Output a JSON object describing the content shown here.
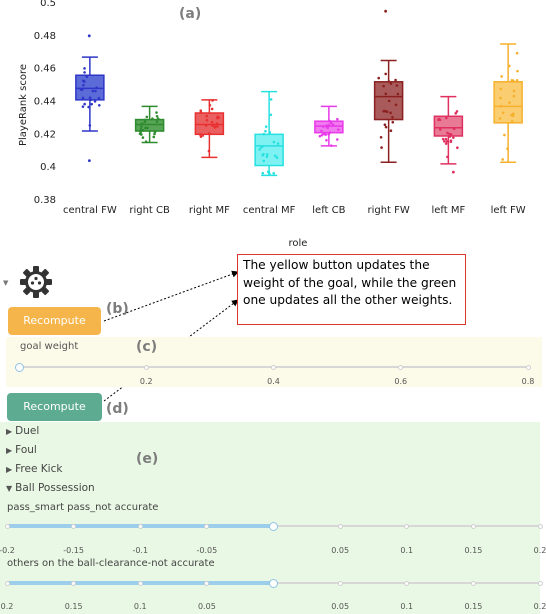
{
  "panels": {
    "a": "(a)",
    "b": "(b)",
    "c": "(c)",
    "d": "(d)",
    "e": "(e)"
  },
  "chart_data": {
    "type": "box",
    "title": "",
    "xlabel": "role",
    "ylabel": "PlayeRank score",
    "ylim": [
      0.38,
      0.5
    ],
    "yticks": [
      "0.38",
      "0.4",
      "0.42",
      "0.44",
      "0.46",
      "0.48",
      "0.5"
    ],
    "categories": [
      "central FW",
      "right CB",
      "right MF",
      "central MF",
      "left CB",
      "right FW",
      "left MF",
      "left FW"
    ],
    "colors": [
      "#2f36c8",
      "#2e8b2e",
      "#e83030",
      "#27e0e0",
      "#e83ae8",
      "#8b2020",
      "#e03060",
      "#f7b02c"
    ],
    "fills": [
      "#5b6bd8",
      "#58a558",
      "#ea6060",
      "#7ef2f2",
      "#f07af0",
      "#a95a5a",
      "#e87a95",
      "#f9cd70"
    ],
    "boxes": [
      {
        "min": 0.422,
        "q1": 0.441,
        "median": 0.448,
        "q3": 0.456,
        "max": 0.467,
        "outliers": [
          0.404,
          0.48
        ]
      },
      {
        "min": 0.415,
        "q1": 0.422,
        "median": 0.426,
        "q3": 0.429,
        "max": 0.437,
        "outliers": []
      },
      {
        "min": 0.406,
        "q1": 0.42,
        "median": 0.426,
        "q3": 0.433,
        "max": 0.441,
        "outliers": []
      },
      {
        "min": 0.395,
        "q1": 0.401,
        "median": 0.413,
        "q3": 0.42,
        "max": 0.446,
        "outliers": []
      },
      {
        "min": 0.413,
        "q1": 0.421,
        "median": 0.425,
        "q3": 0.428,
        "max": 0.437,
        "outliers": []
      },
      {
        "min": 0.403,
        "q1": 0.429,
        "median": 0.443,
        "q3": 0.452,
        "max": 0.465,
        "outliers": [
          0.495
        ]
      },
      {
        "min": 0.402,
        "q1": 0.419,
        "median": 0.424,
        "q3": 0.431,
        "max": 0.443,
        "outliers": [
          0.397
        ]
      },
      {
        "min": 0.403,
        "q1": 0.427,
        "median": 0.437,
        "q3": 0.452,
        "max": 0.475,
        "outliers": []
      }
    ]
  },
  "note": "The yellow button updates the weight of the goal, while the green one updates all the other weights.",
  "buttons": {
    "recompute_yellow": "Recompute",
    "recompute_green": "Recompute",
    "yellow_color": "#f5b54a",
    "green_color": "#5dab90"
  },
  "goal_weight": {
    "label": "goal weight",
    "value": 0,
    "min": 0,
    "max": 0.8,
    "ticks": [
      "0.2",
      "0.4",
      "0.6",
      "0.8"
    ]
  },
  "sections": [
    {
      "label": "Duel",
      "expanded": false
    },
    {
      "label": "Foul",
      "expanded": false
    },
    {
      "label": "Free Kick",
      "expanded": false
    },
    {
      "label": "Ball Possession",
      "expanded": true
    }
  ],
  "sliders": [
    {
      "label": "pass_smart pass_not accurate",
      "value": 0,
      "min": -0.2,
      "max": 0.2,
      "ticks": [
        "-0.2",
        "-0.15",
        "-0.1",
        "-0.05",
        "0.05",
        "0.1",
        "0.15",
        "0.2"
      ]
    },
    {
      "label": "others on the ball-clearance-not accurate",
      "value": 0,
      "min": -0.2,
      "max": 0.2,
      "ticks": [
        "0.2",
        "0.15",
        "0.1",
        "0.05",
        "0.05",
        "0.1",
        "0.15",
        "0.2"
      ]
    }
  ],
  "icons": {
    "settings": "gear-icon",
    "collapse": "triangle-down-icon",
    "expand": "triangle-right-icon"
  }
}
